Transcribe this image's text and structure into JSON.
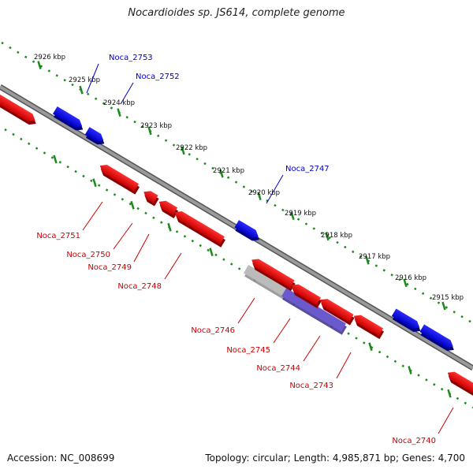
{
  "title": "Nocardioides sp. JS614, complete genome",
  "footer": {
    "accession": "Accession: NC_008699",
    "topology": "Topology: circular; Length: 4,985,871 bp; Genes: 4,700"
  },
  "colors": {
    "forward": "#0000ee",
    "reverse": "#ee0000",
    "backbone": "#808080",
    "ticks": "#1a8a1a",
    "label_forward": "#0000cc",
    "label_reverse": "#cc0000",
    "pseudo": "#bbbbbb",
    "highlight": "#6a5acd"
  },
  "scale_ticks": [
    "2926 kbp",
    "2925 kbp",
    "2924 kbp",
    "2923 kbp",
    "2922 kbp",
    "2921 kbp",
    "2920 kbp",
    "2919 kbp",
    "2918 kbp",
    "2917 kbp",
    "2916 kbp",
    "2915 kbp"
  ],
  "genes": [
    {
      "label": "",
      "strand": "reverse"
    },
    {
      "label": "Noca_2753",
      "strand": "forward"
    },
    {
      "label": "Noca_2752",
      "strand": "forward"
    },
    {
      "label": "Noca_2751",
      "strand": "reverse"
    },
    {
      "label": "Noca_2750",
      "strand": "reverse"
    },
    {
      "label": "Noca_2749",
      "strand": "reverse"
    },
    {
      "label": "Noca_2748",
      "strand": "reverse"
    },
    {
      "label": "Noca_2747",
      "strand": "forward"
    },
    {
      "label": "Noca_2746",
      "strand": "reverse"
    },
    {
      "label": "Noca_2745",
      "strand": "reverse"
    },
    {
      "label": "Noca_2744",
      "strand": "reverse"
    },
    {
      "label": "Noca_2743",
      "strand": "reverse"
    },
    {
      "label": "",
      "strand": "forward"
    },
    {
      "label": "",
      "strand": "forward"
    },
    {
      "label": "Noca_2740",
      "strand": "reverse"
    }
  ],
  "feature_bands": [
    {
      "label": "",
      "kind": "pseudo"
    },
    {
      "label": "",
      "kind": "highlight"
    }
  ]
}
